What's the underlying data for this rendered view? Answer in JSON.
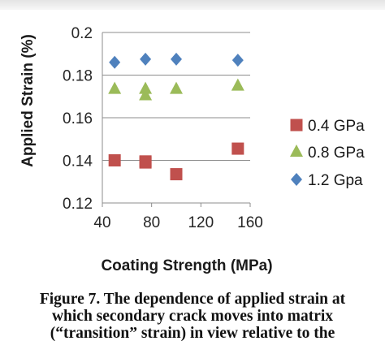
{
  "chart_data": {
    "type": "scatter",
    "xlabel": "Coating Strength (MPa)",
    "ylabel": "Applied Strain (%)",
    "xlim": [
      40,
      160
    ],
    "ylim": [
      0.12,
      0.2
    ],
    "xticks": [
      "40",
      "80",
      "120",
      "160"
    ],
    "yticks": [
      "0.12",
      "0.14",
      "0.16",
      "0.18",
      "0.2"
    ],
    "grid": "horizontal",
    "legend_position": "right",
    "series": [
      {
        "name": "0.4 GPa",
        "marker": "square",
        "color": "#c0504d",
        "points": [
          [
            50,
            0.14
          ],
          [
            75,
            0.1395
          ],
          [
            75,
            0.139
          ],
          [
            100,
            0.1335
          ],
          [
            150,
            0.1455
          ]
        ]
      },
      {
        "name": "0.8 GPa",
        "marker": "triangle",
        "color": "#9bbb59",
        "points": [
          [
            50,
            0.1735
          ],
          [
            75,
            0.1735
          ],
          [
            75,
            0.1705
          ],
          [
            100,
            0.1735
          ],
          [
            150,
            0.175
          ]
        ]
      },
      {
        "name": "1.2 Gpa",
        "marker": "diamond",
        "color": "#4f81bd",
        "points": [
          [
            50,
            0.186
          ],
          [
            75,
            0.1875
          ],
          [
            100,
            0.1875
          ],
          [
            150,
            0.187
          ]
        ]
      }
    ]
  },
  "caption": {
    "lines": [
      "Figure 7. The dependence of applied strain at",
      "which secondary crack moves into matrix",
      "(“transition” strain) in view relative to the"
    ]
  }
}
